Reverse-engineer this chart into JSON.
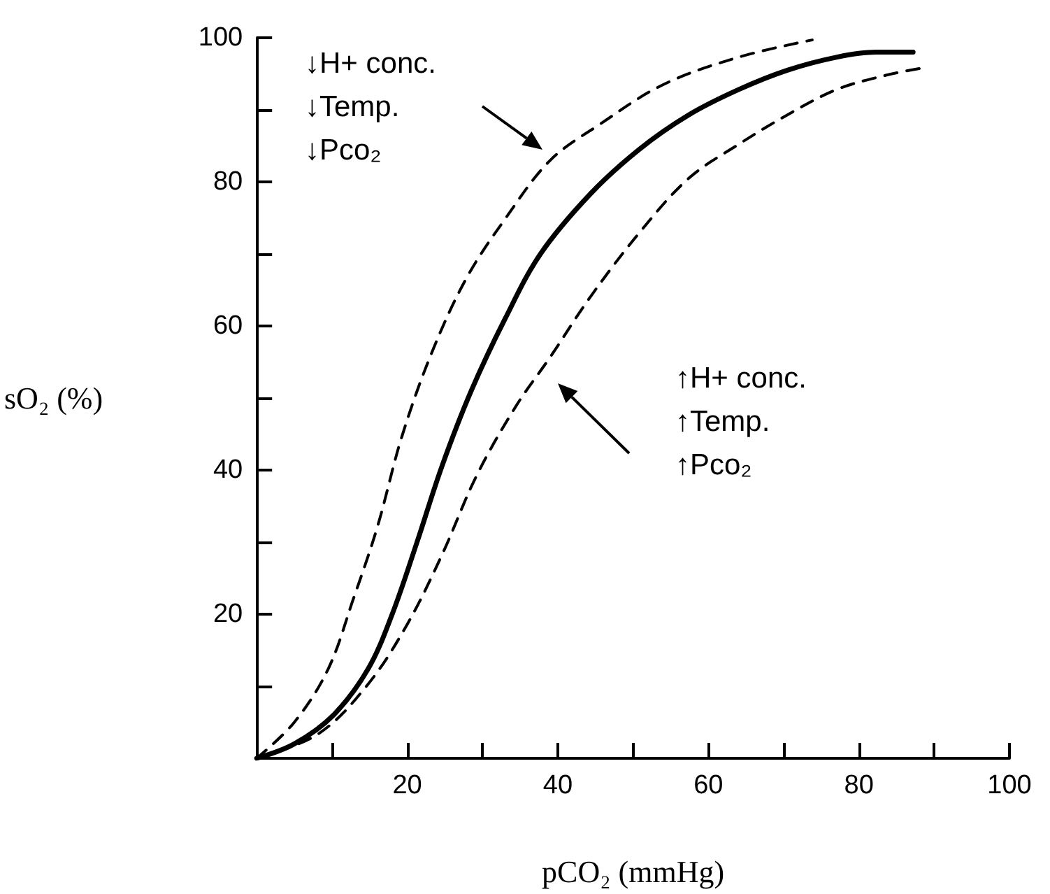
{
  "chart_data": {
    "type": "line",
    "xlabel": "pCO₂ (mmHg)",
    "ylabel": "sO₂ (%)",
    "xlim": [
      0,
      100
    ],
    "ylim": [
      0,
      100
    ],
    "xticks": [
      {
        "value": 10,
        "label": null
      },
      20,
      {
        "value": 30,
        "label": null
      },
      40,
      {
        "value": 50,
        "label": null
      },
      60,
      {
        "value": 70,
        "label": null
      },
      80,
      {
        "value": 90,
        "label": null
      },
      100
    ],
    "yticks": [
      {
        "value": 10,
        "label": null
      },
      20,
      {
        "value": 30,
        "label": null
      },
      40,
      {
        "value": 50,
        "label": null
      },
      60,
      {
        "value": 70,
        "label": null
      },
      80,
      {
        "value": 90,
        "label": null
      },
      100
    ],
    "grid": false,
    "marker": "none",
    "series": [
      {
        "color": "#000000",
        "line_style": "solid",
        "x": [
          0,
          5,
          10.2,
          14.8,
          18,
          21.3,
          24.6,
          28.5,
          33,
          37.7,
          44.3,
          50.8,
          57.4,
          64,
          70.5,
          77,
          82.3,
          87.2
        ],
        "values": [
          0,
          2,
          6,
          12.4,
          20,
          30,
          40.5,
          51,
          61,
          70,
          78.3,
          84.5,
          89.3,
          92.8,
          95.5,
          97.3,
          98,
          98
        ]
      },
      {
        "color": "#000000",
        "line_style": "dashed",
        "x": [
          0,
          5,
          9.5,
          12.8,
          16,
          19.3,
          23.3,
          27.9,
          33.1,
          39,
          45.6,
          54,
          64,
          73.8
        ],
        "values": [
          0,
          5,
          12.4,
          22,
          32,
          44.7,
          56.4,
          66.7,
          75,
          83,
          88,
          93.5,
          97.3,
          99.7
        ]
      },
      {
        "color": "#000000",
        "line_style": "dashed",
        "x": [
          0,
          8.2,
          14.8,
          20,
          24.6,
          29.2,
          34.4,
          39,
          44.3,
          50.8,
          57.4,
          64,
          70.5,
          77,
          83.6,
          88.9
        ],
        "values": [
          0,
          3.4,
          10.3,
          18.6,
          28.2,
          39.2,
          48.8,
          55.7,
          64,
          72.9,
          80.5,
          85.2,
          89.3,
          92.8,
          94.8,
          95.9
        ]
      }
    ],
    "annotations": [
      "↓H+ conc.\n↓Temp.\n↓Pco₂",
      "↑H+ conc.\n↑Temp.\n↑Pco₂"
    ]
  }
}
